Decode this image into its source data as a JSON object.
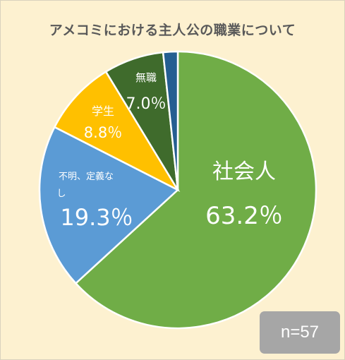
{
  "chart_data": {
    "type": "pie",
    "title": "アメコミにおける主人公の職業について",
    "slices": [
      {
        "label": "社会人",
        "value": 63.2,
        "value_label": "63.2％",
        "color": "#70ad47"
      },
      {
        "label": "不明、定義なし",
        "value": 19.3,
        "value_label": "19.3％",
        "color": "#5b9bd5"
      },
      {
        "label": "学生",
        "value": 8.8,
        "value_label": "8.8％",
        "color": "#ffc000"
      },
      {
        "label": "無職",
        "value": 7.0,
        "value_label": "7.0％",
        "color": "#3f6b2c"
      },
      {
        "label": "",
        "value": 1.7,
        "value_label": "",
        "color": "#255e91"
      }
    ],
    "start_angle_deg": 0,
    "direction": "clockwise",
    "slice_border_color": "#ffffff",
    "legend": "none",
    "annotation": "n=57"
  },
  "colors": {
    "background": "#fdf1d0",
    "title": "#595959",
    "badge_background": "#a6a6a6",
    "label_text": "#ffffff"
  }
}
